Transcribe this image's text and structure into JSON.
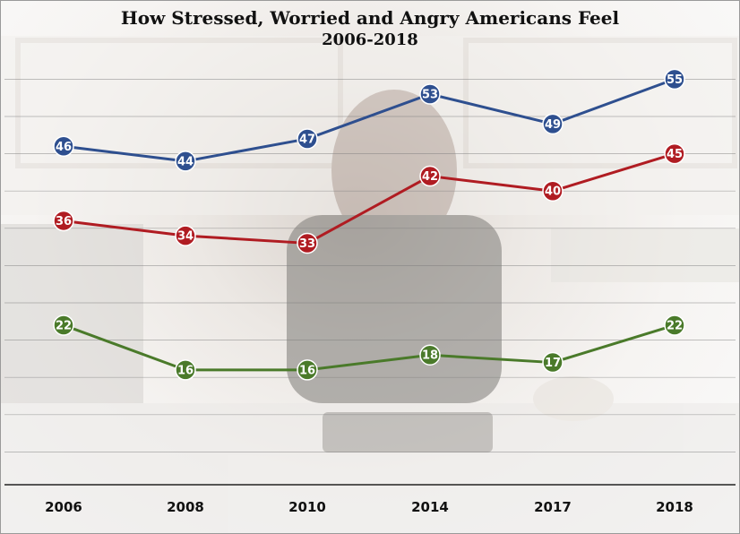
{
  "chart_data": {
    "type": "line",
    "title": "How Stressed, Worried and Angry Americans Feel",
    "subtitle": "2006-2018",
    "categories": [
      "2006",
      "2008",
      "2010",
      "2014",
      "2017",
      "2018"
    ],
    "ylim": [
      0,
      60
    ],
    "grid": true,
    "legend": "none",
    "xlabel": "",
    "ylabel": "",
    "series": [
      {
        "color": "#2e4f8f",
        "values": [
          46,
          44,
          47,
          53,
          49,
          55
        ]
      },
      {
        "color": "#b01c22",
        "values": [
          36,
          34,
          33,
          42,
          40,
          45
        ]
      },
      {
        "color": "#4a7a2a",
        "values": [
          22,
          16,
          16,
          18,
          17,
          22
        ]
      }
    ]
  }
}
